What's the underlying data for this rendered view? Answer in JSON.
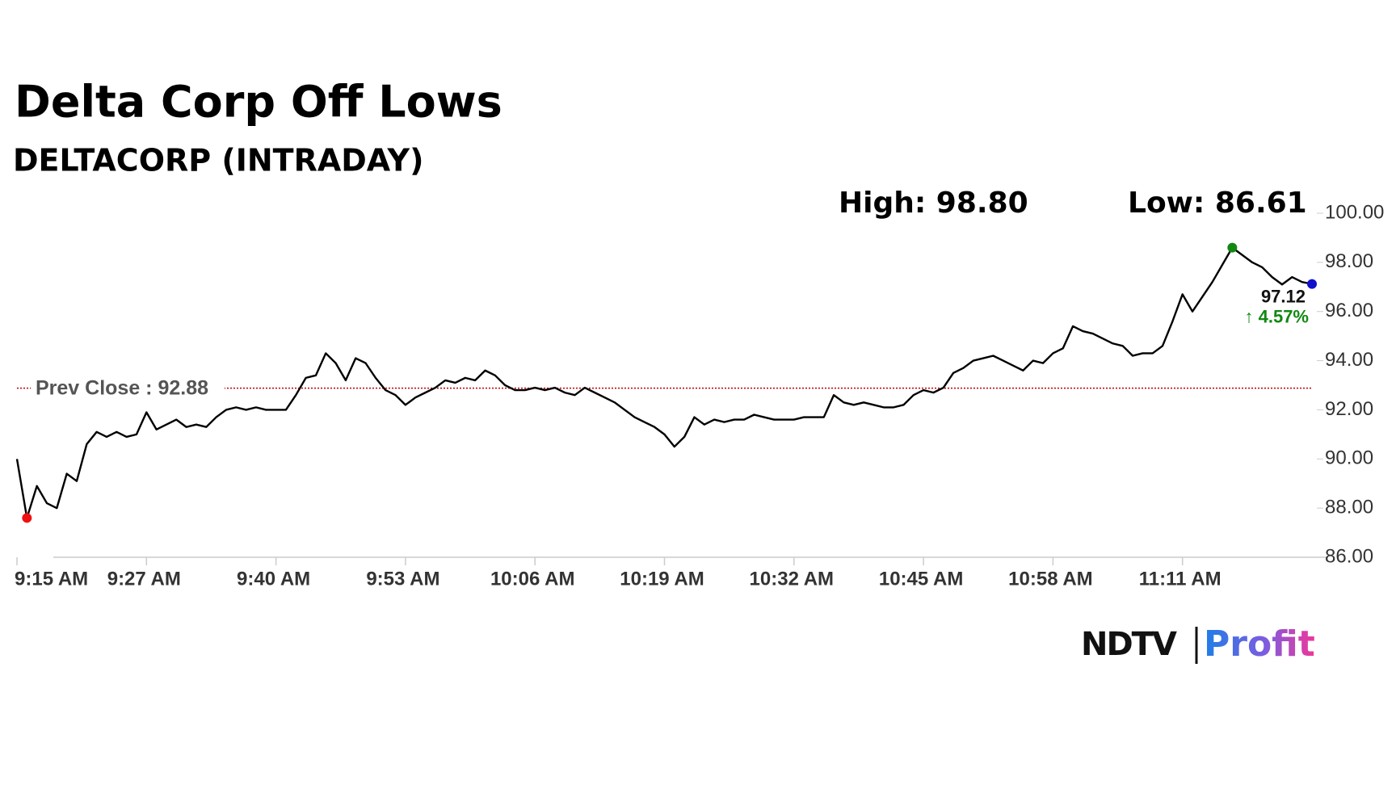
{
  "chart_data": {
    "type": "line",
    "title": "Delta Corp Off Lows",
    "subtitle": "DELTACORP (INTRADAY)",
    "high_label": "High: 98.80",
    "low_label": "Low: 86.61",
    "prev_close": {
      "value": 92.88,
      "label": "Prev Close : 92.88",
      "color": "#c00000"
    },
    "last_label": "97.12",
    "change_label": "↑ 4.57%",
    "change_color": "#118811",
    "high_color": "#118811",
    "low_color": "#ee1111",
    "last_color": "#1111cc",
    "categories": [
      "9:15 AM",
      null,
      null,
      null,
      null,
      null,
      null,
      null,
      null,
      null,
      null,
      null,
      null,
      "9:27 AM",
      null,
      null,
      null,
      null,
      null,
      null,
      null,
      null,
      null,
      null,
      null,
      null,
      "9:40 AM",
      null,
      null,
      null,
      null,
      null,
      null,
      null,
      null,
      null,
      null,
      null,
      null,
      "9:53 AM",
      null,
      null,
      null,
      null,
      null,
      null,
      null,
      null,
      null,
      null,
      null,
      null,
      "10:06 AM",
      null,
      null,
      null,
      null,
      null,
      null,
      null,
      null,
      null,
      null,
      null,
      null,
      "10:19 AM",
      null,
      null,
      null,
      null,
      null,
      null,
      null,
      null,
      null,
      null,
      null,
      null,
      "10:32 AM",
      null,
      null,
      null,
      null,
      null,
      null,
      null,
      null,
      null,
      null,
      null,
      null,
      "10:45 AM",
      null,
      null,
      null,
      null,
      null,
      null,
      null,
      null,
      null,
      null,
      null,
      null,
      "10:58 AM",
      null,
      null,
      null,
      null,
      null,
      null,
      null,
      null,
      null,
      null,
      null,
      null,
      "11:11 AM",
      null,
      null,
      null,
      null,
      null,
      null,
      null,
      null,
      null,
      null,
      null,
      null,
      null
    ],
    "series": [
      {
        "name": "DELTACORP",
        "color": "#000000",
        "values": [
          90.0,
          87.6,
          88.9,
          88.2,
          88.0,
          89.4,
          89.1,
          90.6,
          91.1,
          90.9,
          91.1,
          90.9,
          91.0,
          91.9,
          91.2,
          91.4,
          91.6,
          91.3,
          91.4,
          91.3,
          91.7,
          92.0,
          92.1,
          92.0,
          92.1,
          92.0,
          92.0,
          92.0,
          92.6,
          93.3,
          93.4,
          94.3,
          93.9,
          93.2,
          94.1,
          93.9,
          93.3,
          92.8,
          92.6,
          92.2,
          92.5,
          92.7,
          92.9,
          93.2,
          93.1,
          93.3,
          93.2,
          93.6,
          93.4,
          93.0,
          92.8,
          92.8,
          92.9,
          92.8,
          92.9,
          92.7,
          92.6,
          92.9,
          92.7,
          92.5,
          92.3,
          92.0,
          91.7,
          91.5,
          91.3,
          91.0,
          90.5,
          90.9,
          91.7,
          91.4,
          91.6,
          91.5,
          91.6,
          91.6,
          91.8,
          91.7,
          91.6,
          91.6,
          91.6,
          91.7,
          91.7,
          91.7,
          92.6,
          92.3,
          92.2,
          92.3,
          92.2,
          92.1,
          92.1,
          92.2,
          92.6,
          92.8,
          92.7,
          92.9,
          93.5,
          93.7,
          94.0,
          94.1,
          94.2,
          94.0,
          93.8,
          93.6,
          94.0,
          93.9,
          94.3,
          94.5,
          95.4,
          95.2,
          95.1,
          94.9,
          94.7,
          94.6,
          94.2,
          94.3,
          94.3,
          94.6,
          95.6,
          96.7,
          96.0,
          96.6,
          97.2,
          97.9,
          98.6,
          98.3,
          98.0,
          97.8,
          97.4,
          97.1,
          97.4,
          97.2,
          97.12
        ]
      }
    ],
    "ylim": [
      86,
      100
    ],
    "yticks": [
      {
        "value": 86,
        "label": "86.00"
      },
      {
        "value": 88,
        "label": "88.00"
      },
      {
        "value": 90,
        "label": "90.00"
      },
      {
        "value": 92,
        "label": "92.00"
      },
      {
        "value": 94,
        "label": "94.00"
      },
      {
        "value": 96,
        "label": "96.00"
      },
      {
        "value": 98,
        "label": "98.00"
      },
      {
        "value": 100,
        "label": "100.00"
      }
    ],
    "grid": false
  },
  "logo": {
    "left": "NDTV",
    "right": "Profit"
  }
}
